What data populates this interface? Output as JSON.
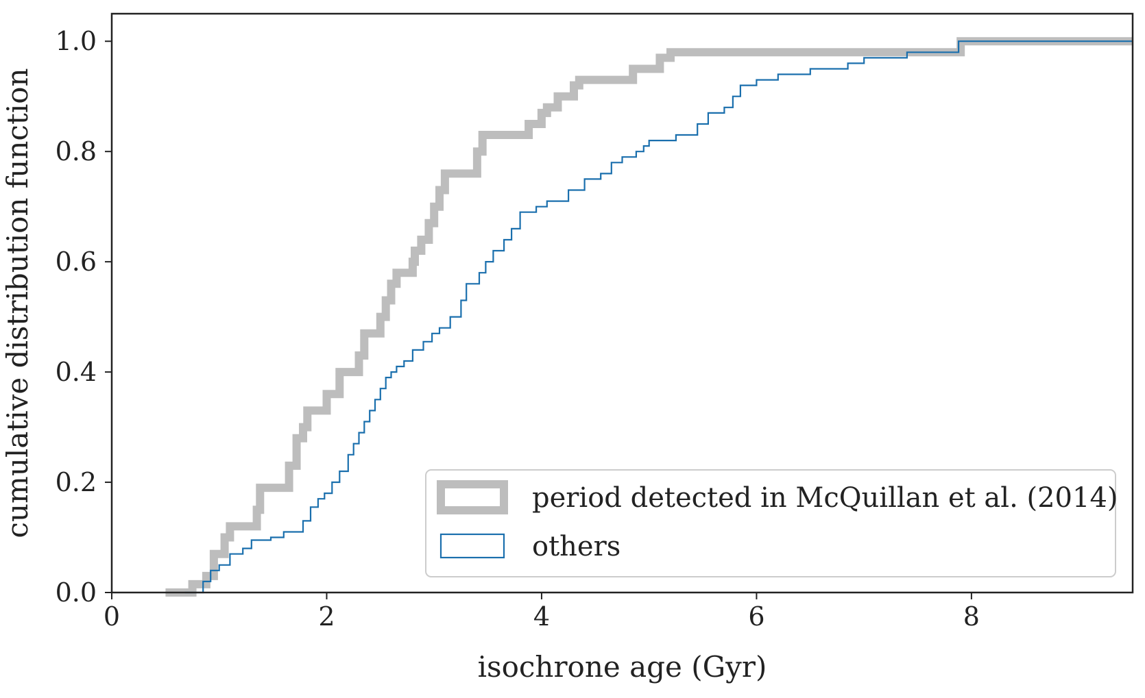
{
  "chart_data": {
    "type": "line",
    "subtype": "empirical CDF step",
    "xlabel": "isochrone age (Gyr)",
    "ylabel": "cumulative distribution function",
    "xlim": [
      0,
      9.5
    ],
    "ylim": [
      0,
      1.05
    ],
    "xticks": [
      0,
      2,
      4,
      6,
      8
    ],
    "xtick_labels": [
      "0",
      "2",
      "4",
      "6",
      "8"
    ],
    "yticks": [
      0.0,
      0.2,
      0.4,
      0.6,
      0.8,
      1.0
    ],
    "ytick_labels": [
      "0.0",
      "0.2",
      "0.4",
      "0.6",
      "0.8",
      "1.0"
    ],
    "grid": false,
    "legend_position": "bottom-right",
    "series": [
      {
        "name": "period detected in McQuillan et al. (2014)",
        "color": "#bdbdbd",
        "style": "thick",
        "x": [
          0.5,
          0.75,
          0.88,
          0.95,
          1.05,
          1.1,
          1.35,
          1.38,
          1.48,
          1.65,
          1.72,
          1.78,
          1.82,
          1.9,
          2.0,
          2.05,
          2.12,
          2.25,
          2.3,
          2.35,
          2.45,
          2.5,
          2.55,
          2.6,
          2.65,
          2.72,
          2.8,
          2.82,
          2.88,
          2.95,
          3.0,
          3.05,
          3.1,
          3.12,
          3.15,
          3.4,
          3.45,
          3.55,
          3.88,
          4.0,
          4.05,
          4.15,
          4.3,
          4.35,
          4.5,
          4.85,
          4.95,
          5.1,
          5.2,
          7.2,
          7.9,
          9.5
        ],
        "y": [
          0.0,
          0.015,
          0.03,
          0.07,
          0.1,
          0.12,
          0.15,
          0.19,
          0.19,
          0.23,
          0.28,
          0.3,
          0.33,
          0.33,
          0.36,
          0.36,
          0.4,
          0.4,
          0.43,
          0.47,
          0.47,
          0.5,
          0.53,
          0.56,
          0.58,
          0.58,
          0.6,
          0.62,
          0.64,
          0.67,
          0.7,
          0.73,
          0.76,
          0.76,
          0.76,
          0.8,
          0.83,
          0.83,
          0.85,
          0.87,
          0.88,
          0.9,
          0.92,
          0.93,
          0.93,
          0.95,
          0.95,
          0.97,
          0.98,
          0.98,
          1.0,
          1.0
        ]
      },
      {
        "name": "others",
        "color": "#1a6fad",
        "style": "thin",
        "x": [
          0.68,
          0.85,
          0.92,
          1.0,
          1.1,
          1.22,
          1.3,
          1.48,
          1.6,
          1.78,
          1.85,
          1.92,
          1.98,
          2.05,
          2.12,
          2.2,
          2.25,
          2.3,
          2.35,
          2.4,
          2.45,
          2.5,
          2.55,
          2.6,
          2.65,
          2.72,
          2.8,
          2.9,
          2.98,
          3.05,
          3.15,
          3.25,
          3.3,
          3.42,
          3.48,
          3.55,
          3.65,
          3.72,
          3.8,
          3.88,
          3.95,
          4.05,
          4.25,
          4.4,
          4.55,
          4.65,
          4.75,
          4.88,
          4.95,
          5.0,
          5.1,
          5.25,
          5.45,
          5.55,
          5.7,
          5.78,
          5.85,
          6.0,
          6.2,
          6.5,
          6.85,
          7.0,
          7.4,
          7.88,
          9.5
        ],
        "y": [
          0.0,
          0.02,
          0.04,
          0.05,
          0.07,
          0.08,
          0.095,
          0.1,
          0.11,
          0.13,
          0.155,
          0.17,
          0.18,
          0.2,
          0.22,
          0.25,
          0.27,
          0.29,
          0.31,
          0.33,
          0.35,
          0.37,
          0.39,
          0.4,
          0.41,
          0.42,
          0.44,
          0.455,
          0.47,
          0.48,
          0.5,
          0.53,
          0.56,
          0.58,
          0.6,
          0.62,
          0.64,
          0.66,
          0.69,
          0.69,
          0.7,
          0.71,
          0.73,
          0.75,
          0.76,
          0.78,
          0.79,
          0.8,
          0.81,
          0.82,
          0.82,
          0.83,
          0.85,
          0.87,
          0.88,
          0.9,
          0.92,
          0.93,
          0.94,
          0.95,
          0.96,
          0.97,
          0.98,
          1.0,
          1.0
        ]
      }
    ]
  }
}
